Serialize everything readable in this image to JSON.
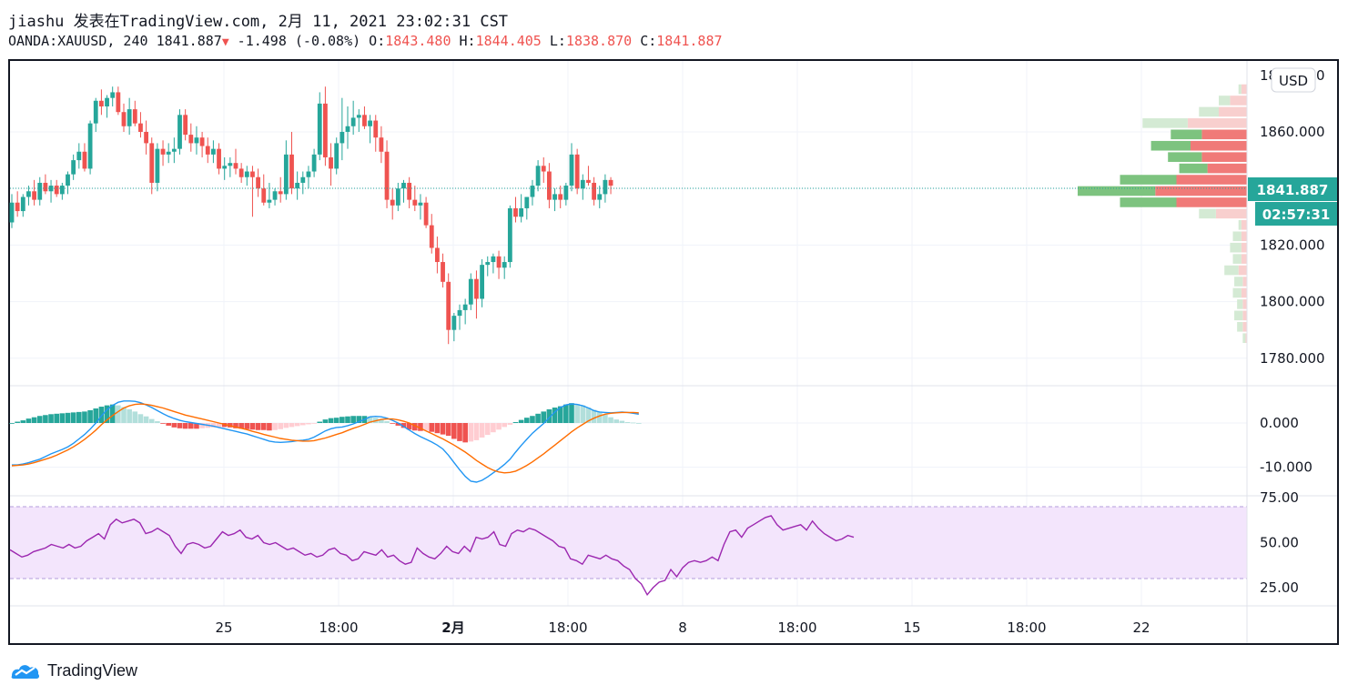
{
  "header": {
    "author_line": "jiashu 发表在TradingView.com, 2月 11, 2021 23:02:31 CST",
    "symbol": "OANDA:XAUUSD, 240",
    "last": "1841.887",
    "change": "-1.498 (-0.08%)",
    "o_label": "O:",
    "o_value": "1843.480",
    "h_label": "H:",
    "h_value": "1844.405",
    "l_label": "L:",
    "l_value": "1838.870",
    "c_label": "C:",
    "c_value": "1841.887"
  },
  "currency_button": "USD",
  "price_badge": "1841.887",
  "countdown_badge": "02:57:31",
  "footer_brand": "TradingView",
  "colors": {
    "up": "#26a69a",
    "down": "#ef5350",
    "macd": "#2196f3",
    "signal": "#ff6d00",
    "rsi": "#9c27b0",
    "rsi_band": "#f3e5fc"
  },
  "chart_data": [
    {
      "type": "candlestick",
      "title": "OANDA:XAUUSD, 240",
      "x_tick_labels": [
        "25",
        "18:00",
        "2月",
        "18:00",
        "8",
        "18:00",
        "15",
        "18:00",
        "22"
      ],
      "y_tick_labels": [
        "1860.000",
        "1840.000",
        "1820.000",
        "1800.000",
        "1780.000"
      ],
      "y_top_partial_label": "1880.000",
      "ylim": [
        1774,
        1878
      ],
      "ohlc": [
        [
          1828,
          1838,
          1826,
          1835
        ],
        [
          1835,
          1839,
          1830,
          1832
        ],
        [
          1832,
          1838,
          1830,
          1837
        ],
        [
          1837,
          1841,
          1834,
          1839
        ],
        [
          1839,
          1843,
          1834,
          1836
        ],
        [
          1836,
          1844,
          1834,
          1842
        ],
        [
          1842,
          1845,
          1838,
          1839
        ],
        [
          1839,
          1843,
          1835,
          1841
        ],
        [
          1841,
          1843,
          1837,
          1838
        ],
        [
          1838,
          1842,
          1836,
          1841
        ],
        [
          1841,
          1846,
          1838,
          1845
        ],
        [
          1845,
          1852,
          1843,
          1850
        ],
        [
          1850,
          1856,
          1847,
          1853
        ],
        [
          1853,
          1856,
          1846,
          1847
        ],
        [
          1847,
          1864,
          1845,
          1863
        ],
        [
          1863,
          1872,
          1860,
          1871
        ],
        [
          1871,
          1875,
          1866,
          1869
        ],
        [
          1869,
          1873,
          1865,
          1872
        ],
        [
          1872,
          1876,
          1869,
          1874
        ],
        [
          1874,
          1876,
          1866,
          1867
        ],
        [
          1867,
          1870,
          1860,
          1862
        ],
        [
          1862,
          1872,
          1859,
          1868
        ],
        [
          1868,
          1871,
          1862,
          1863
        ],
        [
          1863,
          1867,
          1858,
          1860
        ],
        [
          1860,
          1864,
          1852,
          1856
        ],
        [
          1856,
          1858,
          1838,
          1842
        ],
        [
          1842,
          1856,
          1839,
          1854
        ],
        [
          1854,
          1857,
          1848,
          1852
        ],
        [
          1852,
          1856,
          1849,
          1853
        ],
        [
          1853,
          1858,
          1849,
          1854
        ],
        [
          1854,
          1868,
          1852,
          1866
        ],
        [
          1866,
          1868,
          1857,
          1859
        ],
        [
          1859,
          1863,
          1853,
          1856
        ],
        [
          1856,
          1862,
          1852,
          1858
        ],
        [
          1858,
          1860,
          1851,
          1855
        ],
        [
          1855,
          1858,
          1849,
          1852
        ],
        [
          1852,
          1857,
          1849,
          1854
        ],
        [
          1854,
          1856,
          1845,
          1847
        ],
        [
          1847,
          1851,
          1843,
          1848
        ],
        [
          1848,
          1851,
          1844,
          1849
        ],
        [
          1849,
          1854,
          1845,
          1847
        ],
        [
          1847,
          1849,
          1842,
          1844
        ],
        [
          1844,
          1848,
          1841,
          1846
        ],
        [
          1846,
          1848,
          1830,
          1844
        ],
        [
          1844,
          1847,
          1837,
          1840
        ],
        [
          1840,
          1845,
          1834,
          1835
        ],
        [
          1835,
          1842,
          1833,
          1836
        ],
        [
          1836,
          1840,
          1834,
          1839
        ],
        [
          1839,
          1844,
          1835,
          1838
        ],
        [
          1838,
          1857,
          1836,
          1852
        ],
        [
          1852,
          1860,
          1838,
          1840
        ],
        [
          1840,
          1846,
          1836,
          1842
        ],
        [
          1842,
          1846,
          1838,
          1844
        ],
        [
          1844,
          1848,
          1840,
          1846
        ],
        [
          1846,
          1854,
          1844,
          1852
        ],
        [
          1852,
          1874,
          1850,
          1870
        ],
        [
          1870,
          1876,
          1848,
          1851
        ],
        [
          1851,
          1856,
          1841,
          1847
        ],
        [
          1847,
          1858,
          1845,
          1856
        ],
        [
          1856,
          1872,
          1850,
          1860
        ],
        [
          1860,
          1869,
          1854,
          1862
        ],
        [
          1862,
          1871,
          1859,
          1865
        ],
        [
          1865,
          1868,
          1860,
          1866
        ],
        [
          1866,
          1869,
          1861,
          1862
        ],
        [
          1862,
          1866,
          1856,
          1864
        ],
        [
          1864,
          1866,
          1853,
          1858
        ],
        [
          1858,
          1862,
          1849,
          1853
        ],
        [
          1853,
          1857,
          1833,
          1836
        ],
        [
          1836,
          1840,
          1829,
          1834
        ],
        [
          1834,
          1842,
          1832,
          1840
        ],
        [
          1840,
          1843,
          1835,
          1842
        ],
        [
          1842,
          1844,
          1833,
          1836
        ],
        [
          1836,
          1841,
          1832,
          1834
        ],
        [
          1834,
          1838,
          1829,
          1835
        ],
        [
          1835,
          1837,
          1826,
          1827
        ],
        [
          1827,
          1831,
          1817,
          1819
        ],
        [
          1819,
          1823,
          1810,
          1814
        ],
        [
          1814,
          1817,
          1805,
          1807
        ],
        [
          1807,
          1810,
          1785,
          1790
        ],
        [
          1790,
          1796,
          1786,
          1795
        ],
        [
          1795,
          1799,
          1790,
          1797
        ],
        [
          1797,
          1801,
          1792,
          1799
        ],
        [
          1799,
          1810,
          1797,
          1808
        ],
        [
          1808,
          1811,
          1794,
          1801
        ],
        [
          1801,
          1815,
          1798,
          1813
        ],
        [
          1813,
          1816,
          1809,
          1814
        ],
        [
          1814,
          1817,
          1810,
          1816
        ],
        [
          1816,
          1818,
          1808,
          1812
        ],
        [
          1812,
          1816,
          1808,
          1814
        ],
        [
          1814,
          1834,
          1812,
          1833
        ],
        [
          1833,
          1837,
          1828,
          1830
        ],
        [
          1830,
          1838,
          1828,
          1833
        ],
        [
          1833,
          1837,
          1829,
          1837
        ],
        [
          1837,
          1843,
          1834,
          1841
        ],
        [
          1841,
          1850,
          1839,
          1848
        ],
        [
          1848,
          1851,
          1842,
          1846
        ],
        [
          1846,
          1849,
          1833,
          1836
        ],
        [
          1836,
          1840,
          1832,
          1838
        ],
        [
          1838,
          1841,
          1833,
          1836
        ],
        [
          1836,
          1842,
          1834,
          1841
        ],
        [
          1841,
          1856,
          1839,
          1852
        ],
        [
          1852,
          1854,
          1838,
          1840
        ],
        [
          1840,
          1845,
          1836,
          1843
        ],
        [
          1843,
          1848,
          1841,
          1842
        ],
        [
          1842,
          1844,
          1834,
          1836
        ],
        [
          1836,
          1841,
          1833,
          1838
        ],
        [
          1838,
          1845,
          1835,
          1843
        ],
        [
          1843,
          1844,
          1838,
          1841
        ]
      ],
      "volume_profile": {
        "type": "horizontal-bar",
        "rows": [
          {
            "price": 1875,
            "up": 2,
            "down": 4,
            "active": false
          },
          {
            "price": 1871,
            "up": 8,
            "down": 12,
            "active": false
          },
          {
            "price": 1867,
            "up": 14,
            "down": 20,
            "active": false
          },
          {
            "price": 1863,
            "up": 32,
            "down": 42,
            "active": false
          },
          {
            "price": 1859,
            "up": 22,
            "down": 32,
            "active": true
          },
          {
            "price": 1855,
            "up": 28,
            "down": 40,
            "active": true
          },
          {
            "price": 1851,
            "up": 24,
            "down": 32,
            "active": true
          },
          {
            "price": 1847,
            "up": 20,
            "down": 28,
            "active": true
          },
          {
            "price": 1843,
            "up": 40,
            "down": 50,
            "active": true
          },
          {
            "price": 1839,
            "up": 55,
            "down": 65,
            "active": true
          },
          {
            "price": 1835,
            "up": 40,
            "down": 50,
            "active": true
          },
          {
            "price": 1831,
            "up": 12,
            "down": 22,
            "active": false
          },
          {
            "price": 1827,
            "up": 2,
            "down": 4,
            "active": false
          },
          {
            "price": 1823,
            "up": 6,
            "down": 4,
            "active": false
          },
          {
            "price": 1819,
            "up": 8,
            "down": 4,
            "active": false
          },
          {
            "price": 1815,
            "up": 6,
            "down": 4,
            "active": false
          },
          {
            "price": 1811,
            "up": 10,
            "down": 6,
            "active": false
          },
          {
            "price": 1807,
            "up": 6,
            "down": 3,
            "active": false
          },
          {
            "price": 1803,
            "up": 6,
            "down": 4,
            "active": false
          },
          {
            "price": 1799,
            "up": 4,
            "down": 3,
            "active": false
          },
          {
            "price": 1795,
            "up": 6,
            "down": 3,
            "active": false
          },
          {
            "price": 1791,
            "up": 4,
            "down": 3,
            "active": false
          },
          {
            "price": 1787,
            "up": 2,
            "down": 1,
            "active": false
          }
        ]
      }
    },
    {
      "type": "macd",
      "y_tick_labels": [
        "0.000",
        "-10.000"
      ],
      "ylim": [
        -15,
        6
      ],
      "histogram": [
        0,
        0.3,
        0.6,
        1,
        1.3,
        1.6,
        1.8,
        2,
        2.1,
        2.2,
        2.3,
        2.4,
        2.5,
        2.6,
        2.9,
        3.3,
        3.7,
        4,
        4.2,
        4,
        3.6,
        3.1,
        2.6,
        2,
        1.5,
        0.9,
        0.4,
        -0.1,
        -0.6,
        -1,
        -1.2,
        -1.3,
        -1.3,
        -1.3,
        -1.2,
        -1.1,
        -1,
        -0.9,
        -0.9,
        -1,
        -1.2,
        -1.3,
        -1.4,
        -1.5,
        -1.6,
        -1.6,
        -1.7,
        -1.6,
        -1.4,
        -1.1,
        -0.9,
        -0.7,
        -0.5,
        -0.3,
        -0.1,
        0.3,
        0.8,
        1.1,
        1.2,
        1.4,
        1.5,
        1.6,
        1.6,
        1.6,
        1.5,
        1.2,
        0.8,
        0.4,
        -0.1,
        -0.6,
        -1.1,
        -1.5,
        -1.7,
        -1.8,
        -1.7,
        -2,
        -2.3,
        -2.6,
        -2.9,
        -3.6,
        -4.1,
        -4.4,
        -4.2,
        -3.9,
        -3.3,
        -2.7,
        -2.1,
        -1.5,
        -0.9,
        -0.4,
        0.2,
        0.7,
        1.2,
        1.6,
        2.1,
        2.6,
        3.1,
        3.5,
        3.8,
        4.2,
        4.5,
        4.3,
        4,
        3.5,
        3,
        2.5,
        1.9,
        1.3,
        0.8,
        0.5,
        0.2,
        0.1,
        0
      ],
      "macd": [
        -9.5,
        -9.5,
        -9.3,
        -9,
        -8.6,
        -8.2,
        -7.6,
        -7,
        -6.5,
        -6,
        -5.4,
        -4.6,
        -3.6,
        -2.6,
        -1.4,
        0,
        1.6,
        3,
        4,
        4.7,
        5,
        5,
        4.9,
        4.6,
        4.1,
        3.5,
        2.8,
        2.1,
        1.5,
        1,
        0.6,
        0.3,
        0.1,
        -0.1,
        -0.3,
        -0.5,
        -0.7,
        -1,
        -1.3,
        -1.6,
        -1.9,
        -2.2,
        -2.5,
        -2.9,
        -3.3,
        -3.7,
        -4.1,
        -4.3,
        -4.4,
        -4.3,
        -4.2,
        -4,
        -3.9,
        -3.7,
        -3.2,
        -2.5,
        -1.8,
        -1.3,
        -1,
        -0.9,
        -0.6,
        -0.2,
        0.3,
        0.8,
        1.4,
        1.5,
        1.4,
        1.1,
        0.6,
        0,
        -0.8,
        -1.6,
        -2.4,
        -3.1,
        -3.7,
        -4.3,
        -5,
        -5.9,
        -7.3,
        -9,
        -10.6,
        -12.1,
        -13.2,
        -13.4,
        -13,
        -12.2,
        -11.3,
        -10.4,
        -9.4,
        -8.2,
        -6.6,
        -5.1,
        -3.7,
        -2.3,
        -1.2,
        -0.1,
        1.2,
        2.5,
        3.5,
        4.1,
        4.3,
        4.2,
        3.9,
        3.4,
        2.8,
        2.5,
        2.4,
        2.3,
        2.4,
        2.5,
        2.4,
        2.2,
        2
      ],
      "signal": [
        -9.7,
        -9.6,
        -9.5,
        -9.3,
        -9,
        -8.6,
        -8.2,
        -7.8,
        -7.3,
        -6.7,
        -6.1,
        -5.4,
        -4.6,
        -3.7,
        -2.7,
        -1.6,
        -0.4,
        0.7,
        1.7,
        2.6,
        3.4,
        3.9,
        4.2,
        4.3,
        4.2,
        4,
        3.7,
        3.4,
        3,
        2.6,
        2.2,
        1.8,
        1.5,
        1.2,
        0.9,
        0.6,
        0.3,
        0,
        -0.3,
        -0.6,
        -0.9,
        -1.2,
        -1.5,
        -1.9,
        -2.2,
        -2.6,
        -2.9,
        -3.2,
        -3.5,
        -3.7,
        -3.9,
        -4,
        -4.1,
        -4.1,
        -4,
        -3.7,
        -3.4,
        -3,
        -2.6,
        -2.2,
        -1.7,
        -1.2,
        -0.8,
        -0.3,
        0.2,
        0.5,
        0.8,
        0.9,
        0.9,
        0.7,
        0.4,
        0,
        -0.6,
        -1.2,
        -1.8,
        -2.4,
        -3,
        -3.6,
        -4.3,
        -5,
        -5.8,
        -6.6,
        -7.5,
        -8.5,
        -9.3,
        -10.1,
        -10.7,
        -11.1,
        -11.3,
        -11.2,
        -10.9,
        -10.3,
        -9.6,
        -8.8,
        -7.9,
        -7,
        -6,
        -5,
        -4,
        -3,
        -2,
        -1.1,
        -0.3,
        0.5,
        1.1,
        1.6,
        2,
        2.2,
        2.3,
        2.4,
        2.4,
        2.4,
        2.3
      ]
    },
    {
      "type": "line",
      "name": "RSI",
      "y_tick_labels": [
        "75.00",
        "50.00",
        "25.00"
      ],
      "ylim": [
        18,
        81
      ],
      "band": [
        30,
        70
      ],
      "values": [
        46,
        44,
        42,
        43,
        45,
        46,
        47,
        49,
        48,
        47,
        49,
        47,
        48,
        51,
        53,
        55,
        52,
        60,
        63,
        61,
        62,
        63,
        61,
        55,
        56,
        58,
        56,
        54,
        48,
        44,
        49,
        50,
        49,
        47,
        48,
        52,
        56,
        54,
        55,
        57,
        53,
        52,
        54,
        50,
        49,
        50,
        48,
        46,
        47,
        45,
        43,
        44,
        42,
        43,
        46,
        47,
        44,
        43,
        40,
        41,
        45,
        44,
        43,
        46,
        42,
        43,
        40,
        38,
        39,
        47,
        44,
        42,
        41,
        44,
        48,
        45,
        44,
        48,
        45,
        53,
        52,
        53,
        56,
        49,
        48,
        55,
        57,
        56,
        58,
        57,
        55,
        53,
        51,
        48,
        47,
        41,
        40,
        38,
        43,
        42,
        41,
        43,
        41,
        40,
        37,
        35,
        30,
        27,
        21,
        25,
        28,
        29,
        35,
        31,
        36,
        39,
        40,
        39,
        40,
        42,
        40,
        49,
        56,
        57,
        53,
        58,
        60,
        62,
        64,
        65,
        60,
        57,
        58,
        59,
        60,
        57,
        62,
        58,
        55,
        53,
        51,
        52,
        54,
        53
      ]
    }
  ]
}
